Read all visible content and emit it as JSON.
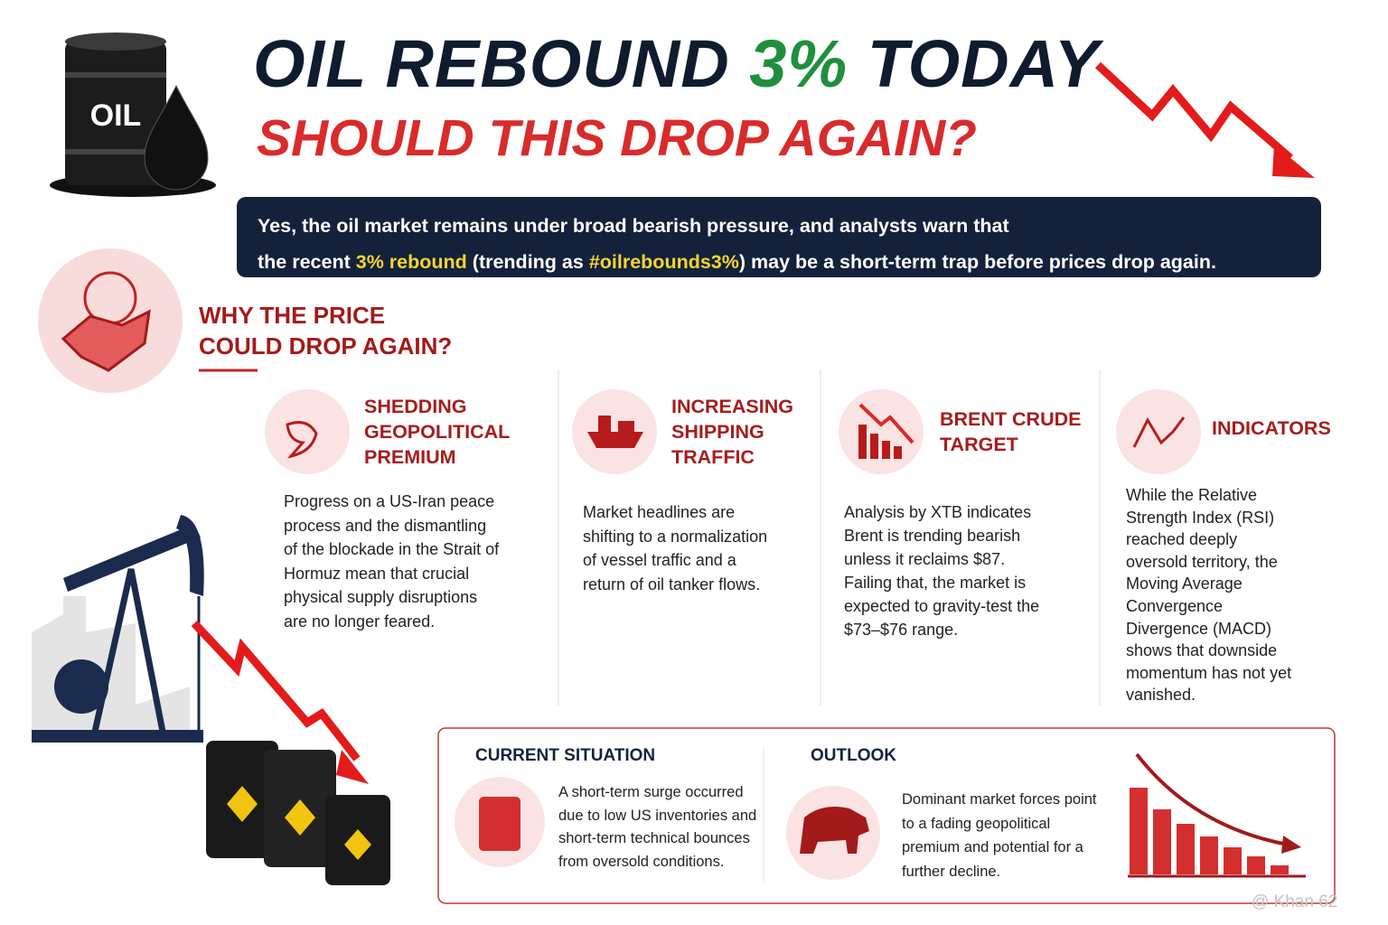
{
  "header": {
    "barrel_label": "OIL",
    "title_part1": "OIL REBOUND",
    "title_highlight": "3%",
    "title_part2": "TODAY",
    "subtitle": "SHOULD THIS DROP AGAIN?"
  },
  "summary": {
    "line1": "Yes, the oil market remains under broad bearish pressure, and analysts warn that",
    "line2_start": "the recent",
    "highlight1": "3% rebound",
    "line2_mid": "(trending as",
    "highlight2": "#oilrebounds3%",
    "line2_end": ") may be a short-term trap before prices drop again."
  },
  "section": {
    "title_lines": [
      "WHY THE PRICE",
      "COULD DROP AGAIN?"
    ]
  },
  "factors": [
    {
      "title_lines": [
        "SHEDDING",
        "GEOPOLITICAL",
        "PREMIUM"
      ],
      "body": "Progress on a US-Iran peace process and the dismantling of the blockade in the Strait of Hormuz mean that crucial physical supply disruptions are no longer feared."
    },
    {
      "title_lines": [
        "INCREASING",
        "SHIPPING",
        "TRAFFIC"
      ],
      "body": "Market headlines are shifting to a normalization of vessel traffic and a return of oil tanker flows."
    },
    {
      "title_lines": [
        "BRENT CRUDE",
        "TARGET"
      ],
      "body": "Analysis by XTB indicates Brent is trending bearish unless it reclaims $87. Failing that, the market is expected to gravity-test the $73–$76 range."
    },
    {
      "title_lines": [
        "INDICATORS"
      ],
      "body": "While the Relative Strength Index (RSI) reached deeply oversold territory, the Moving Average Convergence Divergence (MACD) shows that downside momentum has not yet vanished."
    }
  ],
  "bottom": {
    "current_title": "CURRENT SITUATION",
    "current_text": "A short-term surge occurred due to low US inventories and short-term technical bounces from oversold conditions.",
    "outlook_title": "OUTLOOK",
    "outlook_text": "Dominant market forces point to a fading geopolitical premium and potential for a further decline."
  },
  "watermark": "@ Khan 62"
}
